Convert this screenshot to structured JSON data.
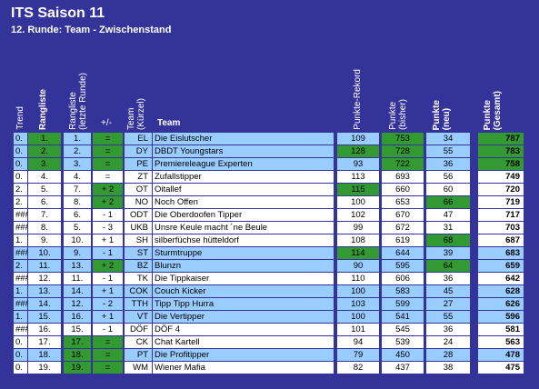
{
  "title": "ITS Saison 11",
  "subtitle": "12. Runde: Team - Zwischenstand",
  "table": {
    "headers": [
      "Trend",
      "Rangliste",
      "Rangliste\n(letzte Runde)",
      "+/-",
      "Team\n(Kürzel)",
      "Team",
      "Punkte-Rekord",
      "Punkte\n(bisher)",
      "Punkte\n(neu)",
      "Punkte\n(Gesamt)"
    ],
    "rows": [
      [
        "0.",
        "1.",
        "1.",
        "=",
        "EL",
        "Die Eislutscher",
        109,
        753,
        34,
        787
      ],
      [
        "0.",
        "2.",
        "2.",
        "=",
        "DY",
        "DBDT Youngstars",
        128,
        728,
        55,
        783
      ],
      [
        "0.",
        "3.",
        "3.",
        "=",
        "PE",
        "Premiereleague Experten",
        93,
        722,
        36,
        758
      ],
      [
        "0.",
        "4.",
        "4.",
        "=",
        "ZT",
        "Zufallstipper",
        113,
        693,
        56,
        749
      ],
      [
        "2.",
        "5.",
        "7.",
        "+ 2",
        "OT",
        "Oitallef",
        115,
        660,
        60,
        720
      ],
      [
        "2.",
        "6.",
        "8.",
        "+ 2",
        "NO",
        "Noch Offen",
        100,
        653,
        66,
        719
      ],
      [
        "###",
        "7.",
        "6.",
        "- 1",
        "ODT",
        "Die Oberdoofen Tipper",
        102,
        670,
        47,
        717
      ],
      [
        "###",
        "8.",
        "5.",
        "- 3",
        "UKB",
        "Unsre Keule macht ´ne Beule",
        99,
        672,
        31,
        703
      ],
      [
        "1.",
        "9.",
        "10.",
        "+ 1",
        "SH",
        "silberfüchse hütteldorf",
        108,
        619,
        68,
        687
      ],
      [
        "###",
        "10.",
        "9.",
        "- 1",
        "ST",
        "Sturmtruppe",
        114,
        644,
        39,
        683
      ],
      [
        "2.",
        "11.",
        "13.",
        "+ 2",
        "BZ",
        "Blunzn",
        90,
        595,
        64,
        659
      ],
      [
        "###",
        "12.",
        "11.",
        "- 1",
        "TK",
        "Die Tippkaiser",
        110,
        606,
        36,
        642
      ],
      [
        "1.",
        "13.",
        "14.",
        "+ 1",
        "COK",
        "Couch Kicker",
        100,
        583,
        45,
        628
      ],
      [
        "###",
        "14.",
        "12.",
        "- 2",
        "TTH",
        "Tipp Tipp Hurra",
        103,
        599,
        27,
        626
      ],
      [
        "1.",
        "15.",
        "16.",
        "+ 1",
        "VT",
        "Die Vertipper",
        100,
        541,
        55,
        596
      ],
      [
        "###",
        "16.",
        "15.",
        "- 1",
        "DÖF",
        "DÖF 4",
        101,
        545,
        36,
        581
      ],
      [
        "0.",
        "17.",
        "17.",
        "=",
        "CK",
        "Chat Kartell",
        94,
        539,
        24,
        563
      ],
      [
        "0.",
        "18.",
        "18.",
        "=",
        "PT",
        "Die Profitipper",
        79,
        450,
        28,
        478
      ],
      [
        "0.",
        "19.",
        "19.",
        "=",
        "WM",
        "Wiener Mafia",
        82,
        437,
        38,
        475
      ]
    ]
  }
}
